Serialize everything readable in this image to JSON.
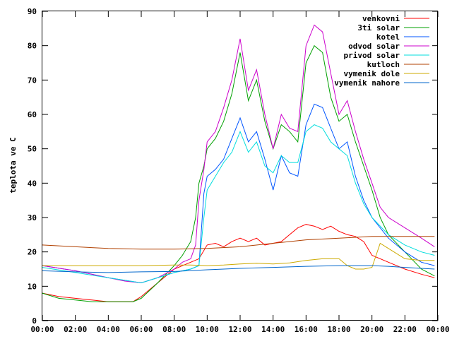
{
  "chart_data": {
    "type": "line",
    "ylabel": "teplota ve C",
    "xlabel": "",
    "ylim": [
      0,
      90
    ],
    "xlim": [
      0,
      24
    ],
    "grid": false,
    "legend_position": "top-right",
    "yticks": [
      0,
      10,
      20,
      30,
      40,
      50,
      60,
      70,
      80,
      90
    ],
    "xticks": [
      {
        "v": 0,
        "label": "00:00"
      },
      {
        "v": 2,
        "label": "02:00"
      },
      {
        "v": 4,
        "label": "04:00"
      },
      {
        "v": 6,
        "label": "06:00"
      },
      {
        "v": 8,
        "label": "08:00"
      },
      {
        "v": 10,
        "label": "10:00"
      },
      {
        "v": 12,
        "label": "12:00"
      },
      {
        "v": 14,
        "label": "14:00"
      },
      {
        "v": 16,
        "label": "16:00"
      },
      {
        "v": 18,
        "label": "18:00"
      },
      {
        "v": 20,
        "label": "20:00"
      },
      {
        "v": 22,
        "label": "22:00"
      },
      {
        "v": 24,
        "label": "00:00"
      }
    ],
    "series": [
      {
        "name": "venkovni",
        "color": "#ff0000",
        "x": [
          0,
          1,
          2,
          3,
          4,
          5,
          5.5,
          6,
          7,
          8,
          9,
          9.5,
          10,
          10.5,
          11,
          11.5,
          12,
          12.5,
          13,
          13.5,
          14,
          14.5,
          15,
          15.5,
          16,
          16.5,
          17,
          17.5,
          18,
          18.5,
          19,
          19.5,
          20,
          21,
          22,
          23,
          23.8
        ],
        "y": [
          8,
          7,
          6.5,
          6,
          5.5,
          5.5,
          5.5,
          7,
          11,
          15,
          17,
          18,
          22,
          22.5,
          21.5,
          23,
          24,
          23,
          24,
          22,
          22.5,
          23,
          25,
          27,
          28,
          27.5,
          26.5,
          27.5,
          26,
          25,
          24.5,
          23,
          19,
          17,
          15,
          13.5,
          12.5
        ]
      },
      {
        "name": "3ti solar",
        "color": "#00a000",
        "x": [
          0,
          1,
          2,
          3,
          4,
          5,
          5.5,
          6,
          7,
          8,
          8.5,
          9,
          9.3,
          9.5,
          9.8,
          10,
          10.5,
          11,
          11.5,
          12,
          12.5,
          13,
          13.5,
          14,
          14.5,
          15,
          15.5,
          16,
          16.5,
          17,
          17.5,
          18,
          18.5,
          19,
          19.5,
          20,
          20.5,
          21,
          22,
          23,
          23.8
        ],
        "y": [
          8,
          6.5,
          6,
          5.5,
          5.5,
          5.5,
          5.5,
          6.5,
          11,
          16,
          19,
          23,
          30,
          40,
          45,
          50,
          53,
          58,
          66,
          78,
          64,
          70,
          58,
          50,
          57,
          55,
          52,
          75,
          80,
          78,
          65,
          58,
          60,
          52,
          45,
          38,
          30,
          25,
          20,
          15,
          13
        ]
      },
      {
        "name": "kotel",
        "color": "#0055ff",
        "x": [
          0,
          2,
          4,
          6,
          8,
          9,
          9.5,
          9.8,
          10,
          10.5,
          11,
          11.5,
          12,
          12.5,
          13,
          13.5,
          14,
          14.5,
          15,
          15.5,
          16,
          16.5,
          17,
          17.5,
          18,
          18.5,
          19,
          19.5,
          20,
          21,
          22,
          23,
          23.8
        ],
        "y": [
          16,
          14.5,
          12.5,
          11,
          14,
          15,
          16,
          37,
          42,
          44,
          47,
          53,
          59,
          52,
          55,
          47,
          38,
          48,
          43,
          42,
          57,
          63,
          62,
          56,
          50,
          52,
          42,
          35,
          30,
          24,
          20,
          17,
          16
        ]
      },
      {
        "name": "odvod solar",
        "color": "#cc00cc",
        "x": [
          0,
          2,
          4,
          5,
          6,
          7,
          8,
          8.5,
          9,
          9.3,
          9.5,
          9.8,
          10,
          10.5,
          11,
          11.5,
          12,
          12.5,
          13,
          13.5,
          14,
          14.5,
          15,
          15.5,
          16,
          16.5,
          17,
          17.5,
          18,
          18.5,
          19,
          19.5,
          20,
          20.5,
          21,
          22,
          23,
          23.8
        ],
        "y": [
          16,
          14.5,
          12.5,
          11.5,
          11,
          12.5,
          15,
          17,
          18,
          22,
          35,
          44,
          52,
          55,
          62,
          70,
          82,
          67,
          73,
          60,
          50,
          60,
          56,
          55,
          80,
          86,
          84,
          72,
          60,
          64,
          55,
          47,
          40,
          33,
          30,
          27,
          24,
          21.5
        ]
      },
      {
        "name": "privod solar",
        "color": "#00dddd",
        "x": [
          0,
          2,
          4,
          6,
          8,
          9,
          9.5,
          9.8,
          10,
          10.5,
          11,
          11.5,
          12,
          12.5,
          13,
          13.5,
          14,
          14.5,
          15,
          15.5,
          16,
          16.5,
          17,
          17.5,
          18,
          18.5,
          19,
          19.5,
          20,
          21,
          22,
          23,
          23.8
        ],
        "y": [
          15.5,
          14,
          12.5,
          11,
          14,
          15,
          16,
          30,
          38,
          42,
          46,
          49,
          55,
          49,
          52,
          45,
          43,
          48,
          46,
          46,
          55,
          57,
          56,
          52,
          50,
          48,
          40,
          34,
          30,
          25,
          22,
          20,
          19
        ]
      },
      {
        "name": "kutloch",
        "color": "#b04000",
        "x": [
          0,
          2,
          4,
          6,
          8,
          10,
          12,
          14,
          16,
          18,
          20,
          22,
          23.8
        ],
        "y": [
          22,
          21.5,
          21,
          20.8,
          20.8,
          21,
          21.5,
          22.5,
          23.5,
          24,
          24.5,
          24.5,
          24.5
        ]
      },
      {
        "name": "vymenik dole",
        "color": "#ccaa00",
        "x": [
          0,
          2,
          4,
          6,
          8,
          9,
          10,
          11,
          12,
          13,
          14,
          15,
          16,
          17,
          18,
          18.5,
          19,
          19.5,
          20,
          20.5,
          21,
          22,
          23,
          23.8
        ],
        "y": [
          16,
          16,
          16,
          16,
          16.2,
          16.2,
          16,
          16.2,
          16.5,
          16.7,
          16.5,
          16.8,
          17.5,
          18,
          18,
          16,
          15,
          15,
          15.5,
          22.5,
          21,
          18,
          17.5,
          17.5
        ]
      },
      {
        "name": "vymenik nahore",
        "color": "#0066cc",
        "x": [
          0,
          2,
          4,
          6,
          8,
          10,
          12,
          14,
          16,
          18,
          20,
          21,
          22,
          23,
          23.8
        ],
        "y": [
          14.5,
          14.2,
          14,
          14.2,
          14.3,
          14.8,
          15.2,
          15.5,
          15.8,
          16,
          16,
          15.8,
          15.5,
          15.2,
          15
        ]
      }
    ]
  }
}
